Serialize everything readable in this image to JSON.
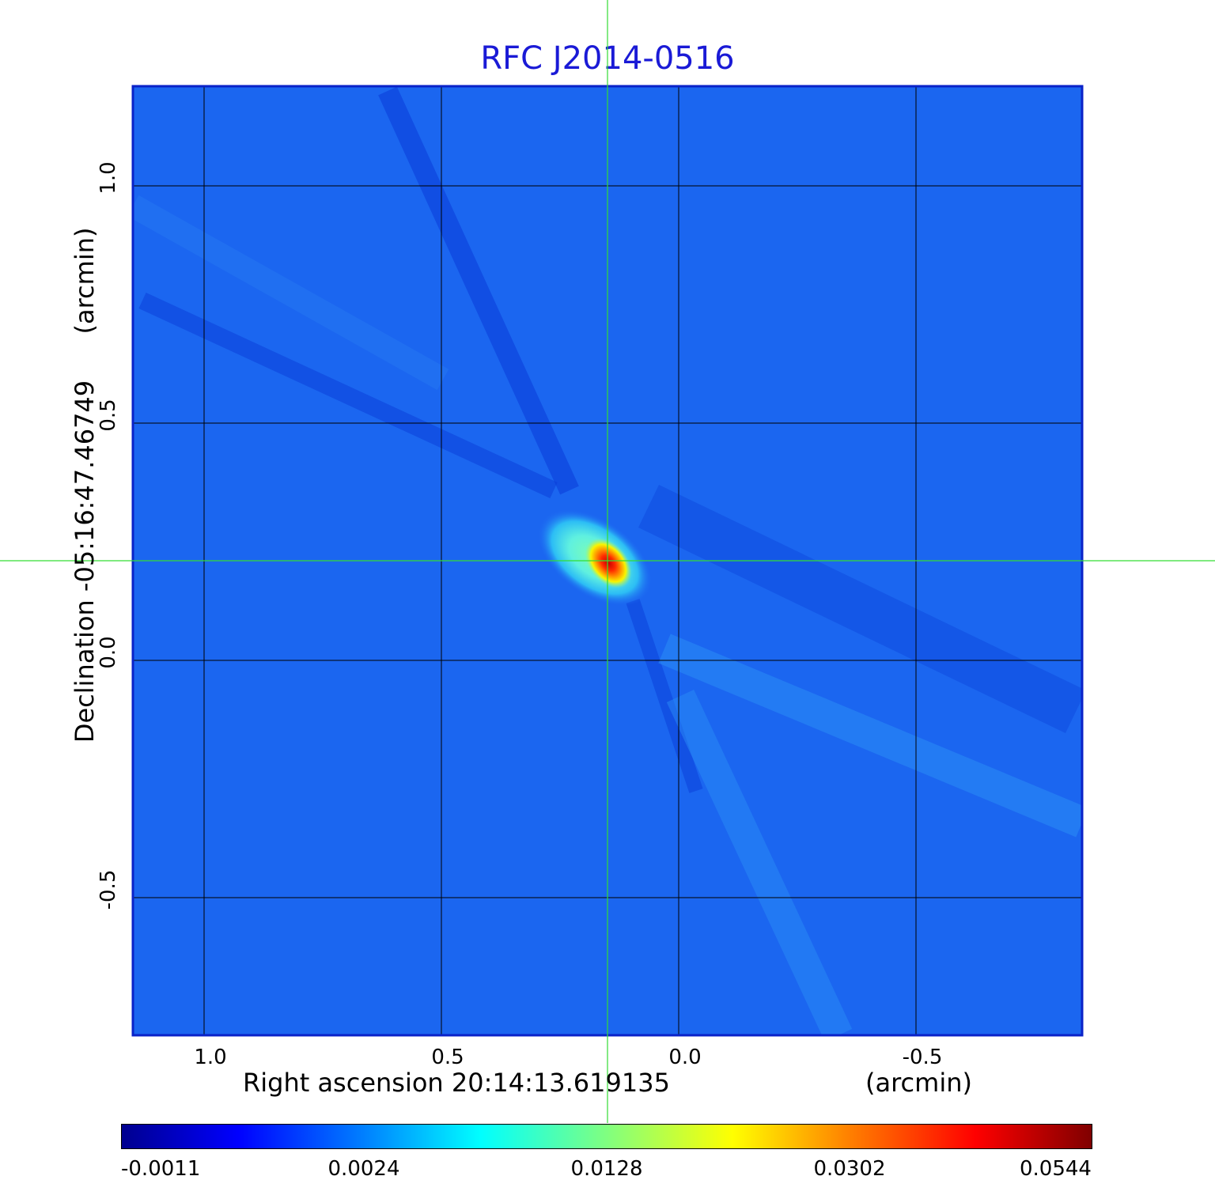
{
  "chart_data": {
    "type": "heatmap",
    "title": "RFC J2014-0516",
    "title_color": "#1a1ad6",
    "xlabel": "Right ascension  20:14:13.619135",
    "xlabel_unit": "(arcmin)",
    "ylabel": "Declination  -05:16:47.46749",
    "ylabel_unit": "(arcmin)",
    "x_range": [
      1.15,
      -0.85
    ],
    "y_range": [
      -0.79,
      1.21
    ],
    "x_ticks": [
      {
        "value": 1.0,
        "label": "1.0"
      },
      {
        "value": 0.5,
        "label": "0.5"
      },
      {
        "value": 0.0,
        "label": "0.0"
      },
      {
        "value": -0.5,
        "label": "-0.5"
      }
    ],
    "y_ticks": [
      {
        "value": 1.0,
        "label": "1.0"
      },
      {
        "value": 0.5,
        "label": "0.5"
      },
      {
        "value": 0.0,
        "label": "0.0"
      },
      {
        "value": -0.5,
        "label": "-0.5"
      }
    ],
    "grid": true,
    "grid_color": "#000000",
    "crosshair": {
      "x": 0.15,
      "y": 0.21,
      "color": "#33dd33"
    },
    "source_peak": {
      "x": 0.15,
      "y": 0.21,
      "value": 0.0544
    },
    "colormap": "jet",
    "colorbar": {
      "position": "bottom",
      "ticks": [
        "-0.0011",
        "0.0024",
        "0.0128",
        "0.0302",
        "0.0544"
      ],
      "min": -0.0011,
      "max": 0.0544
    }
  }
}
